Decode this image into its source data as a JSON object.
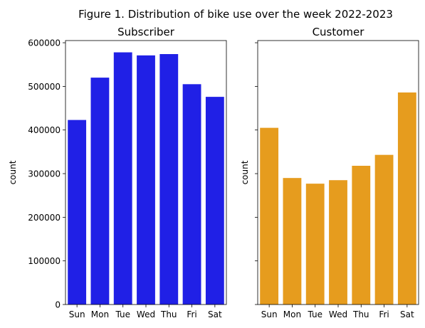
{
  "suptitle": "Figure 1. Distribution of bike use over the week 2022-2023",
  "chart_data": [
    {
      "type": "bar",
      "title": "Subscriber",
      "xlabel": "",
      "ylabel": "count",
      "categories": [
        "Sun",
        "Mon",
        "Tue",
        "Wed",
        "Thu",
        "Fri",
        "Sat"
      ],
      "values": [
        423000,
        520000,
        578000,
        571000,
        574000,
        505000,
        476000
      ],
      "ylim": [
        0,
        605000
      ],
      "yticks": [
        0,
        100000,
        200000,
        300000,
        400000,
        500000,
        600000
      ],
      "color": "#2020e6",
      "grid": false
    },
    {
      "type": "bar",
      "title": "Customer",
      "xlabel": "",
      "ylabel": "count",
      "categories": [
        "Sun",
        "Mon",
        "Tue",
        "Wed",
        "Thu",
        "Fri",
        "Sat"
      ],
      "values": [
        405000,
        290000,
        277000,
        285000,
        318000,
        343000,
        486000
      ],
      "ylim": [
        0,
        605000
      ],
      "yticks": [
        0,
        100000,
        200000,
        300000,
        400000,
        500000,
        600000
      ],
      "shared_y": true,
      "color": "#e69c1e",
      "grid": false
    }
  ]
}
